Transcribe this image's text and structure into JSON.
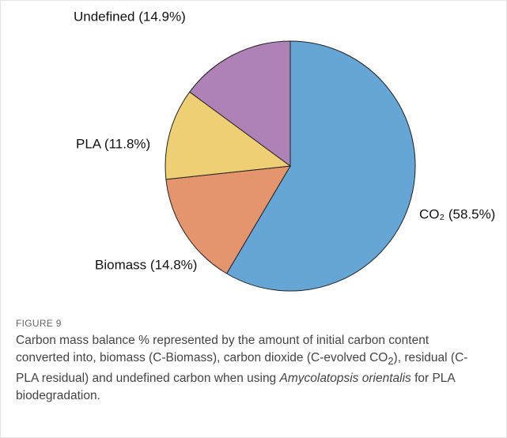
{
  "chart_data": {
    "type": "pie",
    "values": [
      58.5,
      14.8,
      11.8,
      14.9
    ],
    "value_labels": [
      "CO₂ (58.5%)",
      "Biomass (14.8%)",
      "PLA (11.8%)",
      "Undefined (14.9%)"
    ],
    "colors": [
      "#66a6d6",
      "#e5956e",
      "#efcf73",
      "#ae82b6"
    ]
  },
  "figure_label": "FIGURE 9",
  "caption": [
    "Carbon mass balance % represented by the amount of initial carbon content converted into, biomass (C-Biomass), carbon dioxide (C-evolved CO",
    "2",
    "), residual (C- PLA residual) and undefined carbon when using ",
    "Amycolatopsis orientalis",
    " for PLA biodegradation."
  ]
}
